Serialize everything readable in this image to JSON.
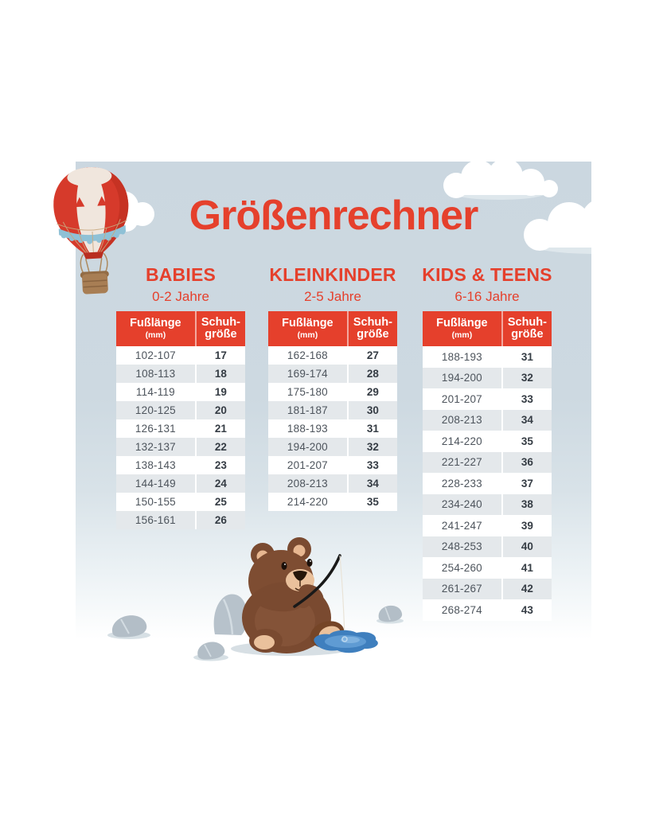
{
  "title": "Größenrechner",
  "table_header": {
    "foot_label": "Fußlänge",
    "foot_unit": "(mm)",
    "size_line1": "Schuh-",
    "size_line2": "größe"
  },
  "chart_data": [
    {
      "type": "table",
      "heading": "BABIES",
      "age_range": "0-2 Jahre",
      "columns": [
        "Fußlänge (mm)",
        "Schuhgröße"
      ],
      "rows": [
        [
          "102-107",
          "17"
        ],
        [
          "108-113",
          "18"
        ],
        [
          "114-119",
          "19"
        ],
        [
          "120-125",
          "20"
        ],
        [
          "126-131",
          "21"
        ],
        [
          "132-137",
          "22"
        ],
        [
          "138-143",
          "23"
        ],
        [
          "144-149",
          "24"
        ],
        [
          "150-155",
          "25"
        ],
        [
          "156-161",
          "26"
        ]
      ]
    },
    {
      "type": "table",
      "heading": "KLEINKINDER",
      "age_range": "2-5 Jahre",
      "columns": [
        "Fußlänge (mm)",
        "Schuhgröße"
      ],
      "rows": [
        [
          "162-168",
          "27"
        ],
        [
          "169-174",
          "28"
        ],
        [
          "175-180",
          "29"
        ],
        [
          "181-187",
          "30"
        ],
        [
          "188-193",
          "31"
        ],
        [
          "194-200",
          "32"
        ],
        [
          "201-207",
          "33"
        ],
        [
          "208-213",
          "34"
        ],
        [
          "214-220",
          "35"
        ]
      ]
    },
    {
      "type": "table",
      "heading": "KIDS & TEENS",
      "age_range": "6-16 Jahre",
      "columns": [
        "Fußlänge (mm)",
        "Schuhgröße"
      ],
      "rows": [
        [
          "188-193",
          "31"
        ],
        [
          "194-200",
          "32"
        ],
        [
          "201-207",
          "33"
        ],
        [
          "208-213",
          "34"
        ],
        [
          "214-220",
          "35"
        ],
        [
          "221-227",
          "36"
        ],
        [
          "228-233",
          "37"
        ],
        [
          "234-240",
          "38"
        ],
        [
          "241-247",
          "39"
        ],
        [
          "248-253",
          "40"
        ],
        [
          "254-260",
          "41"
        ],
        [
          "261-267",
          "42"
        ],
        [
          "268-274",
          "43"
        ]
      ]
    }
  ],
  "colors": {
    "accent": "#e5402c",
    "panel": "#ccd8e1",
    "row_alt": "#e4e8eb",
    "text": "#4d545c",
    "text_bold": "#353c44",
    "puddle": "#3f7fbe",
    "bear_fur": "#7a4a30",
    "rock": "#b3bec7"
  },
  "illustrations": {
    "balloon": "hot-air-balloon-icon",
    "clouds": "cloud-icon",
    "bear": "bear-fishing-illustration",
    "rocks": "rock-icon",
    "puddle": "water-puddle-icon"
  }
}
